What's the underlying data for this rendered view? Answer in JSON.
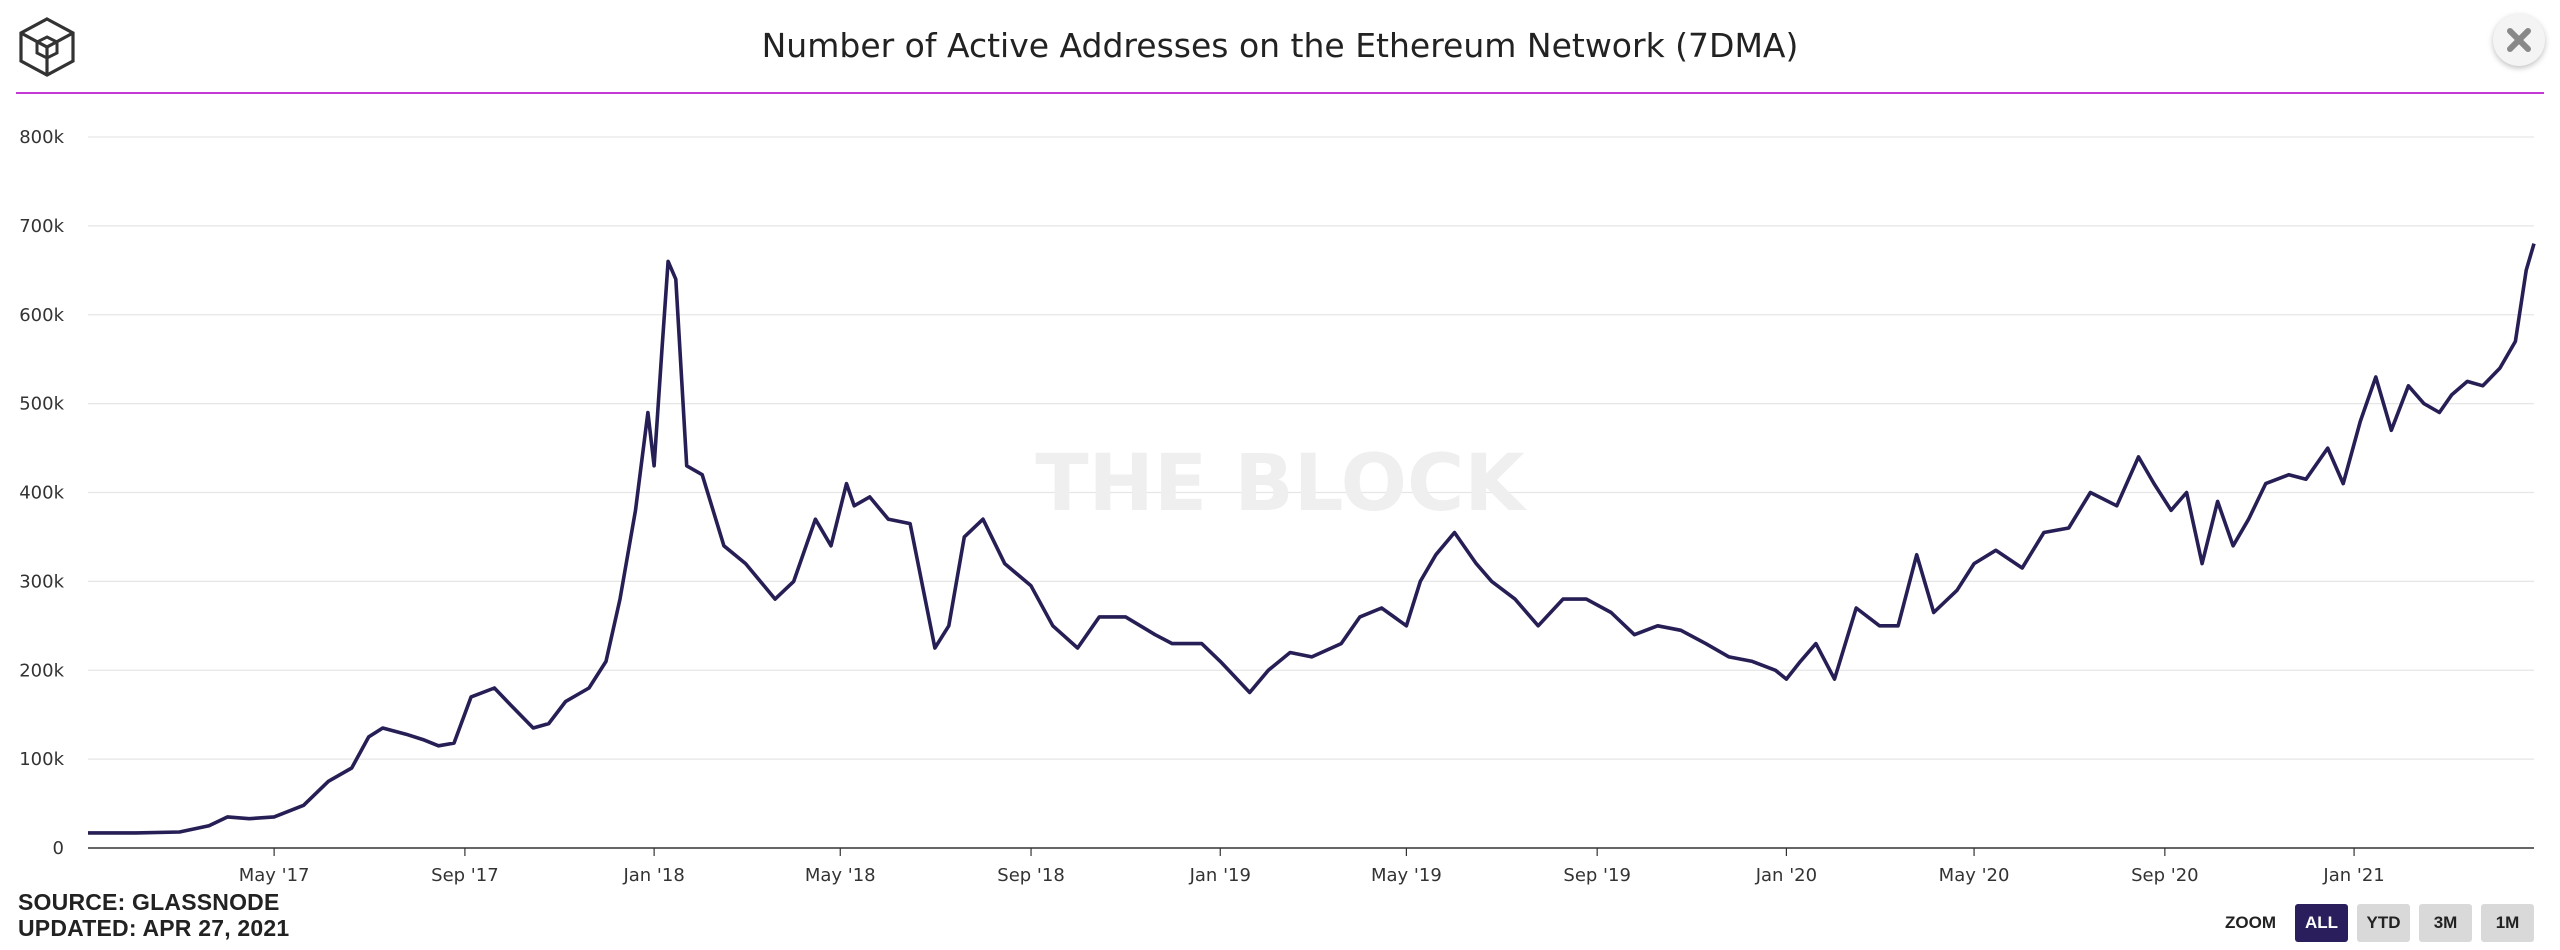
{
  "header": {
    "title": "Number of Active Addresses on the Ethereum Network (7DMA)",
    "logo_icon": "the-block-cube-icon",
    "close_icon": "close-x-icon",
    "rule_color": "#c33ad6"
  },
  "watermark": "THE BLOCK",
  "footer": {
    "source": "SOURCE: GLASSNODE",
    "updated": "UPDATED: APR 27, 2021"
  },
  "zoom": {
    "label": "ZOOM",
    "buttons": [
      "ALL",
      "YTD",
      "3M",
      "1M"
    ],
    "active": "ALL",
    "active_color": "#2a1f5c"
  },
  "chart_data": {
    "type": "line",
    "title": "Number of Active Addresses on the Ethereum Network (7DMA)",
    "xlabel": "",
    "ylabel": "",
    "ylim": [
      0,
      800000
    ],
    "yticks": [
      0,
      100000,
      200000,
      300000,
      400000,
      500000,
      600000,
      700000,
      800000
    ],
    "ytick_labels": [
      "0",
      "100k",
      "200k",
      "300k",
      "400k",
      "500k",
      "600k",
      "700k",
      "800k"
    ],
    "x_range": [
      "2017-01-01",
      "2021-04-27"
    ],
    "xticks": [
      "2017-05-01",
      "2017-09-01",
      "2018-01-01",
      "2018-05-01",
      "2018-09-01",
      "2019-01-01",
      "2019-05-01",
      "2019-09-01",
      "2020-01-01",
      "2020-05-01",
      "2020-09-01",
      "2021-01-01"
    ],
    "xtick_labels": [
      "May '17",
      "Sep '17",
      "Jan '18",
      "May '18",
      "Sep '18",
      "Jan '19",
      "May '19",
      "Sep '19",
      "Jan '20",
      "May '20",
      "Sep '20",
      "Jan '21"
    ],
    "grid": true,
    "legend": "none",
    "line_color": "#261f55",
    "series": [
      {
        "x": [
          "2017-01-01",
          "2017-02-01",
          "2017-03-01",
          "2017-03-20",
          "2017-04-01",
          "2017-04-15",
          "2017-05-01",
          "2017-05-20",
          "2017-06-05",
          "2017-06-20",
          "2017-07-01",
          "2017-07-10",
          "2017-07-25",
          "2017-08-05",
          "2017-08-15",
          "2017-08-25",
          "2017-09-05",
          "2017-09-20",
          "2017-10-01",
          "2017-10-15",
          "2017-10-25",
          "2017-11-05",
          "2017-11-20",
          "2017-12-01",
          "2017-12-10",
          "2017-12-20",
          "2017-12-28",
          "2018-01-01",
          "2018-01-06",
          "2018-01-10",
          "2018-01-15",
          "2018-01-22",
          "2018-02-01",
          "2018-02-15",
          "2018-03-01",
          "2018-03-20",
          "2018-04-01",
          "2018-04-15",
          "2018-04-25",
          "2018-05-05",
          "2018-05-10",
          "2018-05-20",
          "2018-06-01",
          "2018-06-15",
          "2018-07-01",
          "2018-07-10",
          "2018-07-20",
          "2018-08-01",
          "2018-08-15",
          "2018-09-01",
          "2018-09-15",
          "2018-10-01",
          "2018-10-15",
          "2018-11-01",
          "2018-11-20",
          "2018-12-01",
          "2018-12-20",
          "2019-01-01",
          "2019-01-20",
          "2019-02-01",
          "2019-02-15",
          "2019-03-01",
          "2019-03-20",
          "2019-04-01",
          "2019-04-15",
          "2019-05-01",
          "2019-05-10",
          "2019-05-20",
          "2019-06-01",
          "2019-06-15",
          "2019-06-25",
          "2019-07-10",
          "2019-07-25",
          "2019-08-10",
          "2019-08-25",
          "2019-09-10",
          "2019-09-25",
          "2019-10-10",
          "2019-10-25",
          "2019-11-10",
          "2019-11-25",
          "2019-12-10",
          "2019-12-25",
          "2020-01-01",
          "2020-01-10",
          "2020-01-20",
          "2020-02-01",
          "2020-02-15",
          "2020-03-01",
          "2020-03-13",
          "2020-03-25",
          "2020-04-05",
          "2020-04-20",
          "2020-05-01",
          "2020-05-15",
          "2020-06-01",
          "2020-06-15",
          "2020-07-01",
          "2020-07-15",
          "2020-08-01",
          "2020-08-15",
          "2020-08-25",
          "2020-09-05",
          "2020-09-15",
          "2020-09-25",
          "2020-10-05",
          "2020-10-15",
          "2020-10-25",
          "2020-11-05",
          "2020-11-20",
          "2020-12-01",
          "2020-12-15",
          "2020-12-25",
          "2021-01-05",
          "2021-01-15",
          "2021-01-25",
          "2021-02-05",
          "2021-02-15",
          "2021-02-25",
          "2021-03-05",
          "2021-03-15",
          "2021-03-25",
          "2021-04-05",
          "2021-04-15",
          "2021-04-22",
          "2021-04-27"
        ],
        "y": [
          17000,
          17000,
          18000,
          25000,
          35000,
          33000,
          35000,
          48000,
          75000,
          90000,
          125000,
          135000,
          128000,
          122000,
          115000,
          118000,
          170000,
          180000,
          160000,
          135000,
          140000,
          165000,
          180000,
          210000,
          280000,
          380000,
          490000,
          430000,
          560000,
          660000,
          640000,
          430000,
          420000,
          340000,
          320000,
          280000,
          300000,
          370000,
          340000,
          410000,
          385000,
          395000,
          370000,
          365000,
          225000,
          250000,
          350000,
          370000,
          320000,
          295000,
          250000,
          225000,
          260000,
          260000,
          240000,
          230000,
          230000,
          210000,
          175000,
          200000,
          220000,
          215000,
          230000,
          260000,
          270000,
          250000,
          300000,
          330000,
          355000,
          320000,
          300000,
          280000,
          250000,
          280000,
          280000,
          265000,
          240000,
          250000,
          245000,
          230000,
          215000,
          210000,
          200000,
          190000,
          210000,
          230000,
          190000,
          270000,
          250000,
          250000,
          330000,
          265000,
          290000,
          320000,
          335000,
          315000,
          355000,
          360000,
          400000,
          385000,
          440000,
          410000,
          380000,
          400000,
          320000,
          390000,
          340000,
          370000,
          410000,
          420000,
          415000,
          450000,
          410000,
          480000,
          530000,
          470000,
          520000,
          500000,
          490000,
          510000,
          525000,
          520000,
          540000,
          570000,
          650000,
          680000
        ]
      }
    ]
  }
}
